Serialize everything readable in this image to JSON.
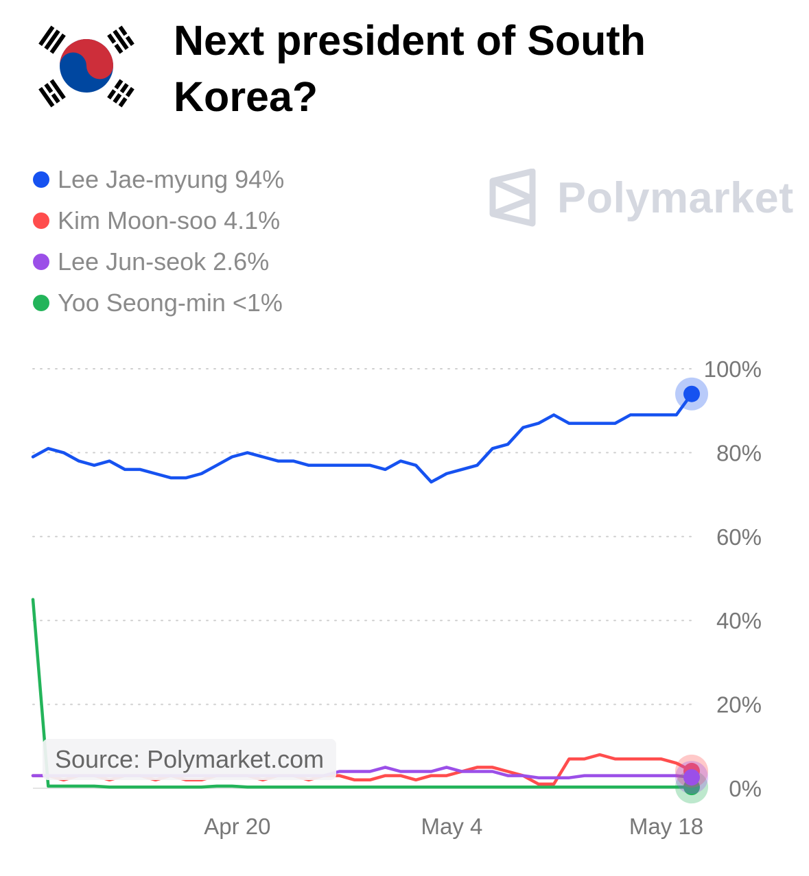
{
  "title": "Next president of South Korea?",
  "flag_icon": "south-korea-flag-icon",
  "watermark": {
    "icon": "polymarket-logo-icon",
    "text": "Polymarket"
  },
  "source": "Source: Polymarket.com",
  "colors": {
    "lee_jae_myung": "#1652f0",
    "kim_moon_soo": "#ff4d4d",
    "lee_jun_seok": "#9b4fe8",
    "yoo_seong_min": "#23b45a",
    "grid": "#cfcfcf",
    "axis_text": "#777777"
  },
  "legend": [
    {
      "label": "Lee Jae-myung 94%",
      "color": "#1652f0"
    },
    {
      "label": "Kim Moon-soo 4.1%",
      "color": "#ff4d4d"
    },
    {
      "label": "Lee Jun-seok 2.6%",
      "color": "#9b4fe8"
    },
    {
      "label": "Yoo Seong-min <1%",
      "color": "#23b45a"
    }
  ],
  "chart_data": {
    "type": "line",
    "title": "Next president of South Korea?",
    "x_unit": "day",
    "x": [
      "Apr 5",
      "Apr 6",
      "Apr 7",
      "Apr 8",
      "Apr 9",
      "Apr 10",
      "Apr 11",
      "Apr 12",
      "Apr 13",
      "Apr 14",
      "Apr 15",
      "Apr 16",
      "Apr 17",
      "Apr 18",
      "Apr 19",
      "Apr 20",
      "Apr 21",
      "Apr 22",
      "Apr 23",
      "Apr 24",
      "Apr 25",
      "Apr 26",
      "Apr 27",
      "Apr 28",
      "Apr 29",
      "Apr 30",
      "May 1",
      "May 2",
      "May 3",
      "May 4",
      "May 5",
      "May 6",
      "May 7",
      "May 8",
      "May 9",
      "May 10",
      "May 11",
      "May 12",
      "May 13",
      "May 14",
      "May 15",
      "May 16",
      "May 17",
      "May 18"
    ],
    "x_tick_labels": [
      "Apr 20",
      "May 4",
      "May 18"
    ],
    "y_tick_labels": [
      "100%",
      "80%",
      "60%",
      "40%",
      "20%",
      "0%"
    ],
    "ylim": [
      0,
      100
    ],
    "grid": "horizontal-dotted",
    "legend_position": "top-left",
    "series": [
      {
        "name": "Lee Jae-myung",
        "color": "#1652f0",
        "values": [
          79,
          81,
          80,
          78,
          77,
          78,
          76,
          76,
          75,
          74,
          74,
          75,
          77,
          79,
          80,
          79,
          78,
          78,
          77,
          77,
          77,
          77,
          77,
          76,
          78,
          77,
          73,
          75,
          76,
          77,
          81,
          82,
          86,
          87,
          89,
          87,
          87,
          87,
          87,
          89,
          89,
          89,
          89,
          94
        ]
      },
      {
        "name": "Kim Moon-soo",
        "color": "#ff4d4d",
        "values": [
          3,
          3,
          2,
          3,
          3,
          2,
          3,
          3,
          2,
          3,
          2,
          2,
          3,
          3,
          3,
          2,
          3,
          3,
          2,
          3,
          3,
          2,
          2,
          3,
          3,
          2,
          3,
          3,
          4,
          5,
          5,
          4,
          3,
          1,
          1,
          7,
          7,
          8,
          7,
          7,
          7,
          7,
          6,
          4.1
        ]
      },
      {
        "name": "Lee Jun-seok",
        "color": "#9b4fe8",
        "values": [
          3,
          3,
          3,
          3,
          3,
          3,
          3,
          3,
          3,
          3,
          3,
          3,
          3,
          3,
          3,
          3,
          3,
          3,
          3,
          3,
          4,
          4,
          4,
          5,
          4,
          4,
          4,
          5,
          4,
          4,
          4,
          3,
          3,
          2.5,
          2.5,
          2.5,
          3,
          3,
          3,
          3,
          3,
          3,
          3,
          2.6
        ]
      },
      {
        "name": "Yoo Seong-min",
        "color": "#23b45a",
        "values": [
          45,
          0.5,
          0.5,
          0.5,
          0.5,
          0.3,
          0.3,
          0.3,
          0.3,
          0.3,
          0.3,
          0.3,
          0.5,
          0.5,
          0.3,
          0.3,
          0.3,
          0.3,
          0.3,
          0.3,
          0.3,
          0.3,
          0.3,
          0.3,
          0.3,
          0.3,
          0.3,
          0.3,
          0.3,
          0.3,
          0.3,
          0.3,
          0.3,
          0.3,
          0.3,
          0.3,
          0.3,
          0.3,
          0.3,
          0.3,
          0.3,
          0.3,
          0.3,
          0.3
        ]
      }
    ]
  }
}
